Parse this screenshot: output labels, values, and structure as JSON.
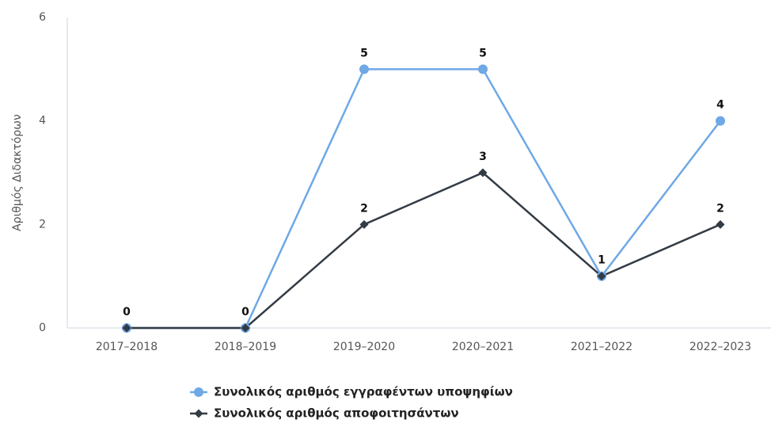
{
  "chart_data": {
    "type": "line",
    "y_label": "Αριθμός Διδακτόρων",
    "categories": [
      "2017–2018",
      "2018–2019",
      "2019–2020",
      "2020–2021",
      "2021–2022",
      "2022–2023"
    ],
    "series": [
      {
        "name": "Συνολικός αριθμός εγγραφέντων υποψηφίων",
        "color": "#6fa8e6",
        "marker": "circle",
        "values": [
          0,
          0,
          5,
          5,
          1,
          4
        ]
      },
      {
        "name": "Συνολικός αριθμός αποφοιτησάντων",
        "color": "#333b44",
        "marker": "diamond",
        "values": [
          0,
          0,
          2,
          3,
          1,
          2
        ]
      }
    ],
    "ylim": [
      0,
      6
    ],
    "yticks": [
      0,
      2,
      4,
      6
    ],
    "grid": false,
    "legend": "bottom"
  }
}
